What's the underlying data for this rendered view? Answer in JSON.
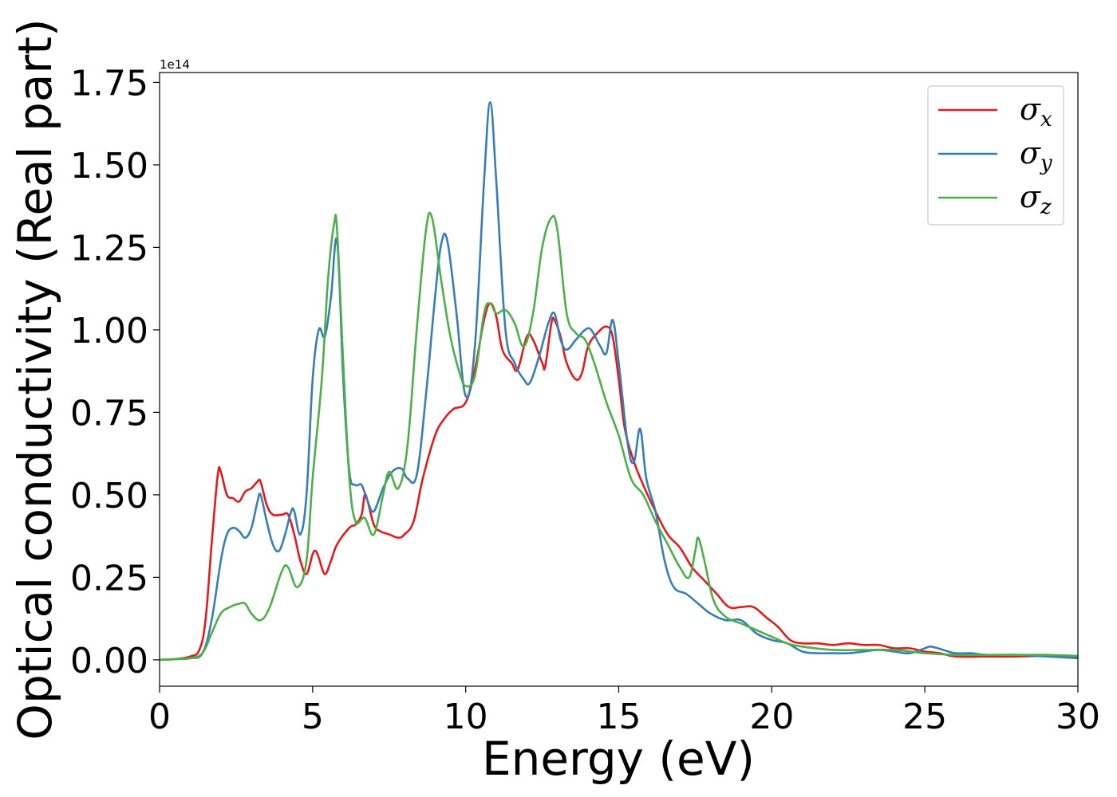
{
  "chart_data": {
    "type": "line",
    "xlabel": "Energy (eV)",
    "ylabel": "Optical conductivity (Real part)",
    "y_offset_label": "1e14",
    "y_scale": 100000000000000.0,
    "xlim": [
      0,
      30
    ],
    "ylim": [
      -0.08,
      1.78
    ],
    "xticks": [
      0,
      5,
      10,
      15,
      20,
      25,
      30
    ],
    "xtick_labels": [
      "0",
      "5",
      "10",
      "15",
      "20",
      "25",
      "30"
    ],
    "yticks": [
      0.0,
      0.25,
      0.5,
      0.75,
      1.0,
      1.25,
      1.5,
      1.75
    ],
    "ytick_labels": [
      "0.00",
      "0.25",
      "0.50",
      "0.75",
      "1.00",
      "1.25",
      "1.50",
      "1.75"
    ],
    "grid": false,
    "legend_position": "top-right",
    "series": [
      {
        "name": "σ",
        "subscript": "x",
        "color": "#e41a1c",
        "points": [
          [
            0,
            0
          ],
          [
            0.5,
            0.002
          ],
          [
            1,
            0.01
          ],
          [
            1.3,
            0.03
          ],
          [
            1.5,
            0.12
          ],
          [
            1.7,
            0.35
          ],
          [
            1.9,
            0.56
          ],
          [
            2,
            0.57
          ],
          [
            2.2,
            0.5
          ],
          [
            2.4,
            0.49
          ],
          [
            2.6,
            0.48
          ],
          [
            2.8,
            0.51
          ],
          [
            3,
            0.52
          ],
          [
            3.2,
            0.54
          ],
          [
            3.3,
            0.54
          ],
          [
            3.5,
            0.47
          ],
          [
            3.7,
            0.44
          ],
          [
            4,
            0.44
          ],
          [
            4.2,
            0.44
          ],
          [
            4.4,
            0.38
          ],
          [
            4.6,
            0.3
          ],
          [
            4.8,
            0.26
          ],
          [
            5,
            0.32
          ],
          [
            5.1,
            0.33
          ],
          [
            5.2,
            0.31
          ],
          [
            5.4,
            0.26
          ],
          [
            5.6,
            0.3
          ],
          [
            5.8,
            0.35
          ],
          [
            6.2,
            0.4
          ],
          [
            6.4,
            0.41
          ],
          [
            6.6,
            0.44
          ],
          [
            6.7,
            0.5
          ],
          [
            6.8,
            0.48
          ],
          [
            7,
            0.41
          ],
          [
            7.2,
            0.39
          ],
          [
            7.5,
            0.38
          ],
          [
            7.8,
            0.37
          ],
          [
            8,
            0.38
          ],
          [
            8.3,
            0.42
          ],
          [
            8.6,
            0.55
          ],
          [
            9,
            0.68
          ],
          [
            9.3,
            0.73
          ],
          [
            9.6,
            0.76
          ],
          [
            10,
            0.78
          ],
          [
            10.3,
            0.88
          ],
          [
            10.6,
            1.03
          ],
          [
            10.8,
            1.08
          ],
          [
            11,
            1.04
          ],
          [
            11.2,
            0.94
          ],
          [
            11.5,
            0.9
          ],
          [
            11.7,
            0.88
          ],
          [
            12,
            0.98
          ],
          [
            12.2,
            0.97
          ],
          [
            12.5,
            0.9
          ],
          [
            12.6,
            0.89
          ],
          [
            12.8,
            1.02
          ],
          [
            12.9,
            1.03
          ],
          [
            13.1,
            0.98
          ],
          [
            13.3,
            0.9
          ],
          [
            13.6,
            0.85
          ],
          [
            13.8,
            0.87
          ],
          [
            14,
            0.95
          ],
          [
            14.3,
            0.99
          ],
          [
            14.6,
            1.01
          ],
          [
            14.8,
            0.98
          ],
          [
            15,
            0.85
          ],
          [
            15.2,
            0.7
          ],
          [
            15.5,
            0.6
          ],
          [
            15.8,
            0.53
          ],
          [
            16.2,
            0.45
          ],
          [
            16.6,
            0.38
          ],
          [
            17,
            0.34
          ],
          [
            17.4,
            0.28
          ],
          [
            17.8,
            0.24
          ],
          [
            18.2,
            0.2
          ],
          [
            18.6,
            0.16
          ],
          [
            19,
            0.16
          ],
          [
            19.4,
            0.16
          ],
          [
            19.8,
            0.13
          ],
          [
            20.2,
            0.1
          ],
          [
            20.6,
            0.06
          ],
          [
            21,
            0.05
          ],
          [
            21.5,
            0.05
          ],
          [
            22,
            0.045
          ],
          [
            22.5,
            0.05
          ],
          [
            23,
            0.045
          ],
          [
            23.5,
            0.045
          ],
          [
            24,
            0.035
          ],
          [
            24.5,
            0.035
          ],
          [
            25,
            0.025
          ],
          [
            25.5,
            0.02
          ],
          [
            26,
            0.01
          ],
          [
            27,
            0.01
          ],
          [
            28,
            0.01
          ],
          [
            29,
            0.012
          ],
          [
            30,
            0.01
          ]
        ]
      },
      {
        "name": "σ",
        "subscript": "y",
        "color": "#377eb8",
        "points": [
          [
            0,
            0
          ],
          [
            0.5,
            0.002
          ],
          [
            1,
            0.005
          ],
          [
            1.4,
            0.02
          ],
          [
            1.7,
            0.12
          ],
          [
            2,
            0.3
          ],
          [
            2.2,
            0.38
          ],
          [
            2.4,
            0.4
          ],
          [
            2.6,
            0.39
          ],
          [
            2.8,
            0.37
          ],
          [
            3,
            0.4
          ],
          [
            3.2,
            0.48
          ],
          [
            3.3,
            0.5
          ],
          [
            3.5,
            0.42
          ],
          [
            3.7,
            0.35
          ],
          [
            3.9,
            0.33
          ],
          [
            4.1,
            0.38
          ],
          [
            4.3,
            0.45
          ],
          [
            4.4,
            0.45
          ],
          [
            4.6,
            0.38
          ],
          [
            4.8,
            0.5
          ],
          [
            5,
            0.85
          ],
          [
            5.2,
            1.0
          ],
          [
            5.4,
            0.98
          ],
          [
            5.6,
            1.1
          ],
          [
            5.8,
            1.27
          ],
          [
            6,
            0.85
          ],
          [
            6.2,
            0.57
          ],
          [
            6.4,
            0.53
          ],
          [
            6.6,
            0.53
          ],
          [
            6.8,
            0.48
          ],
          [
            7,
            0.45
          ],
          [
            7.3,
            0.52
          ],
          [
            7.6,
            0.57
          ],
          [
            7.9,
            0.58
          ],
          [
            8.1,
            0.55
          ],
          [
            8.4,
            0.56
          ],
          [
            8.7,
            0.8
          ],
          [
            9,
            1.1
          ],
          [
            9.2,
            1.26
          ],
          [
            9.4,
            1.27
          ],
          [
            9.7,
            1.05
          ],
          [
            10,
            0.8
          ],
          [
            10.3,
            0.95
          ],
          [
            10.6,
            1.45
          ],
          [
            10.8,
            1.69
          ],
          [
            11,
            1.45
          ],
          [
            11.3,
            1.0
          ],
          [
            11.6,
            0.9
          ],
          [
            11.9,
            0.85
          ],
          [
            12.1,
            0.84
          ],
          [
            12.4,
            0.92
          ],
          [
            12.7,
            1.02
          ],
          [
            12.9,
            1.05
          ],
          [
            13.1,
            0.97
          ],
          [
            13.3,
            0.94
          ],
          [
            13.6,
            0.97
          ],
          [
            13.9,
            1.0
          ],
          [
            14.1,
            1.0
          ],
          [
            14.4,
            0.95
          ],
          [
            14.6,
            0.93
          ],
          [
            14.8,
            1.03
          ],
          [
            15,
            0.9
          ],
          [
            15.3,
            0.65
          ],
          [
            15.5,
            0.6
          ],
          [
            15.7,
            0.7
          ],
          [
            15.9,
            0.55
          ],
          [
            16.2,
            0.45
          ],
          [
            16.5,
            0.3
          ],
          [
            16.8,
            0.22
          ],
          [
            17.2,
            0.2
          ],
          [
            17.6,
            0.17
          ],
          [
            18,
            0.14
          ],
          [
            18.5,
            0.12
          ],
          [
            19,
            0.12
          ],
          [
            19.5,
            0.08
          ],
          [
            20,
            0.06
          ],
          [
            20.5,
            0.05
          ],
          [
            21,
            0.025
          ],
          [
            21.5,
            0.02
          ],
          [
            22,
            0.02
          ],
          [
            22.5,
            0.02
          ],
          [
            23,
            0.025
          ],
          [
            23.5,
            0.03
          ],
          [
            24,
            0.025
          ],
          [
            24.5,
            0.02
          ],
          [
            25,
            0.035
          ],
          [
            25.2,
            0.04
          ],
          [
            25.6,
            0.03
          ],
          [
            26,
            0.02
          ],
          [
            26.5,
            0.02
          ],
          [
            27,
            0.015
          ],
          [
            28,
            0.015
          ],
          [
            29,
            0.01
          ],
          [
            30,
            0.005
          ]
        ]
      },
      {
        "name": "σ",
        "subscript": "z",
        "color": "#4daf4a",
        "points": [
          [
            0,
            0
          ],
          [
            0.5,
            0.002
          ],
          [
            1,
            0.005
          ],
          [
            1.4,
            0.02
          ],
          [
            1.7,
            0.08
          ],
          [
            2,
            0.14
          ],
          [
            2.3,
            0.16
          ],
          [
            2.6,
            0.17
          ],
          [
            2.8,
            0.17
          ],
          [
            3,
            0.14
          ],
          [
            3.3,
            0.12
          ],
          [
            3.6,
            0.16
          ],
          [
            4,
            0.27
          ],
          [
            4.2,
            0.28
          ],
          [
            4.5,
            0.22
          ],
          [
            4.8,
            0.3
          ],
          [
            5,
            0.55
          ],
          [
            5.3,
            0.85
          ],
          [
            5.5,
            1.15
          ],
          [
            5.7,
            1.32
          ],
          [
            5.8,
            1.3
          ],
          [
            6,
            0.9
          ],
          [
            6.2,
            0.55
          ],
          [
            6.4,
            0.42
          ],
          [
            6.7,
            0.43
          ],
          [
            7,
            0.38
          ],
          [
            7.3,
            0.5
          ],
          [
            7.5,
            0.57
          ],
          [
            7.8,
            0.52
          ],
          [
            8.1,
            0.65
          ],
          [
            8.4,
            1.0
          ],
          [
            8.7,
            1.3
          ],
          [
            8.9,
            1.34
          ],
          [
            9.2,
            1.15
          ],
          [
            9.5,
            0.98
          ],
          [
            9.8,
            0.87
          ],
          [
            10,
            0.83
          ],
          [
            10.3,
            0.86
          ],
          [
            10.6,
            1.05
          ],
          [
            10.8,
            1.08
          ],
          [
            11,
            1.05
          ],
          [
            11.3,
            1.06
          ],
          [
            11.6,
            1.02
          ],
          [
            11.9,
            0.95
          ],
          [
            12.2,
            1.05
          ],
          [
            12.5,
            1.25
          ],
          [
            12.8,
            1.34
          ],
          [
            13,
            1.3
          ],
          [
            13.3,
            1.05
          ],
          [
            13.6,
            0.99
          ],
          [
            13.9,
            0.97
          ],
          [
            14.2,
            0.9
          ],
          [
            14.6,
            0.78
          ],
          [
            15,
            0.68
          ],
          [
            15.4,
            0.55
          ],
          [
            15.8,
            0.5
          ],
          [
            16.2,
            0.42
          ],
          [
            16.6,
            0.35
          ],
          [
            17,
            0.28
          ],
          [
            17.3,
            0.25
          ],
          [
            17.5,
            0.33
          ],
          [
            17.6,
            0.37
          ],
          [
            17.8,
            0.3
          ],
          [
            18.1,
            0.18
          ],
          [
            18.5,
            0.13
          ],
          [
            19,
            0.11
          ],
          [
            19.5,
            0.09
          ],
          [
            20,
            0.07
          ],
          [
            20.5,
            0.05
          ],
          [
            21,
            0.04
          ],
          [
            22,
            0.03
          ],
          [
            23,
            0.03
          ],
          [
            24,
            0.03
          ],
          [
            25,
            0.02
          ],
          [
            26,
            0.015
          ],
          [
            27,
            0.015
          ],
          [
            28,
            0.015
          ],
          [
            29,
            0.015
          ],
          [
            30,
            0.012
          ]
        ]
      }
    ]
  }
}
